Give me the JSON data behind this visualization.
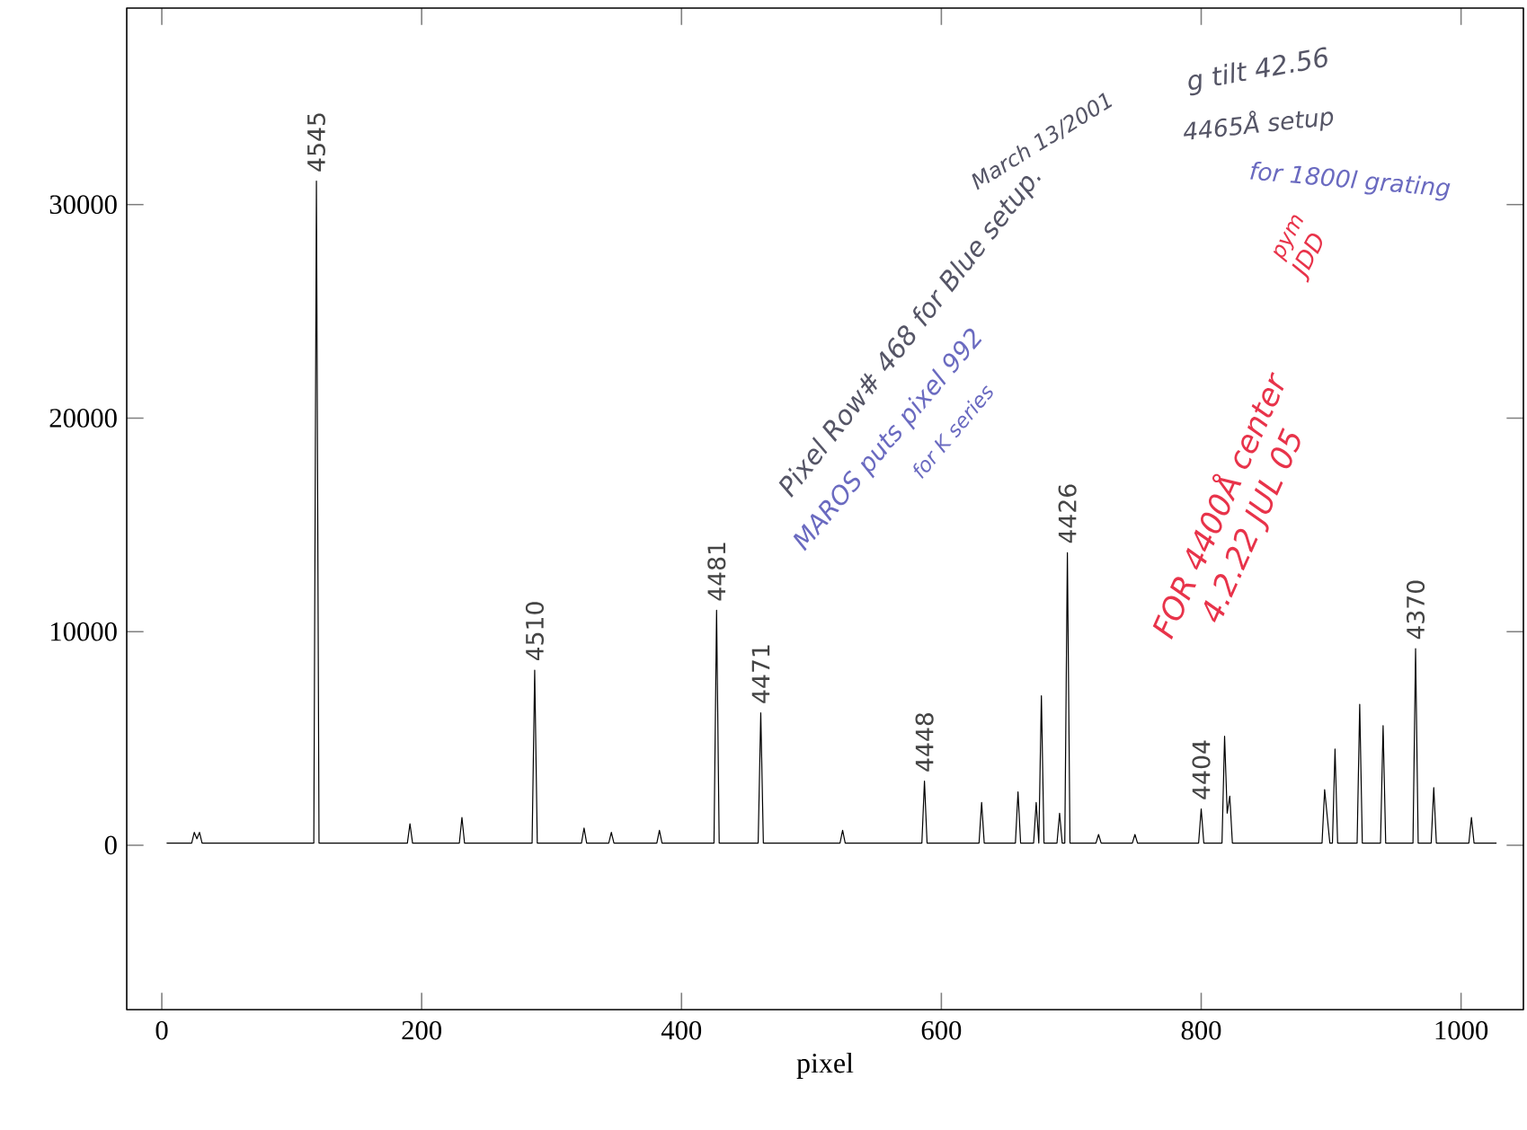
{
  "chart_data": {
    "type": "line",
    "xlabel": "pixel",
    "xlim": [
      -27,
      1048
    ],
    "ylim": [
      -7700,
      39200
    ],
    "xticks": [
      0,
      200,
      400,
      600,
      800,
      1000
    ],
    "yticks": [
      0,
      10000,
      20000,
      30000
    ],
    "grid": false,
    "marker": "none",
    "line_style": "solid",
    "series": [
      {
        "color": "#000000",
        "x": [
          4,
          23,
          25,
          27,
          29,
          31,
          117,
          119,
          121,
          189,
          191,
          193,
          229,
          231,
          233,
          285,
          287,
          289,
          323,
          325,
          327,
          344,
          346,
          348,
          381,
          383,
          385,
          425,
          427,
          429,
          459,
          461,
          463,
          522,
          524,
          526,
          585,
          587,
          589,
          629,
          631,
          633,
          657,
          659,
          661,
          671,
          673,
          675,
          677,
          679,
          689,
          691,
          693,
          695,
          697,
          699,
          719,
          721,
          723,
          747,
          749,
          751,
          798,
          800,
          802,
          816,
          818,
          820,
          822,
          824,
          893,
          895,
          899,
          901,
          903,
          905,
          920,
          922,
          924,
          938,
          940,
          942,
          963,
          965,
          967,
          977,
          979,
          981,
          1006,
          1008,
          1010,
          1027
        ],
        "values": [
          100,
          100,
          600,
          300,
          600,
          100,
          100,
          31100,
          100,
          100,
          1000,
          100,
          100,
          1300,
          100,
          100,
          8200,
          100,
          100,
          800,
          100,
          100,
          600,
          100,
          100,
          700,
          100,
          100,
          11000,
          100,
          100,
          6200,
          100,
          100,
          700,
          100,
          100,
          3000,
          100,
          100,
          2000,
          100,
          100,
          2500,
          100,
          100,
          2000,
          100,
          7000,
          100,
          100,
          1500,
          100,
          100,
          13700,
          100,
          100,
          500,
          100,
          100,
          500,
          100,
          100,
          1700,
          100,
          100,
          5100,
          1500,
          2300,
          100,
          100,
          2600,
          100,
          100,
          4500,
          100,
          100,
          6600,
          100,
          100,
          5600,
          100,
          100,
          9200,
          100,
          100,
          2700,
          100,
          100,
          1300,
          100,
          100
        ]
      }
    ],
    "annotations": [
      {
        "text": "4545",
        "x": 119,
        "y": 31100
      },
      {
        "text": "4510",
        "x": 287,
        "y": 8200
      },
      {
        "text": "4481",
        "x": 427,
        "y": 11000
      },
      {
        "text": "4471",
        "x": 461,
        "y": 6200
      },
      {
        "text": "4448",
        "x": 587,
        "y": 3000
      },
      {
        "text": "4426",
        "x": 697,
        "y": 13700
      },
      {
        "text": "4404",
        "x": 800,
        "y": 1700
      },
      {
        "text": "4370",
        "x": 965,
        "y": 9200
      },
      "Pixel Row# 468 for Blue setup.",
      "March 13/2001",
      "MAROS puts pixel 992",
      "for K series",
      "g tilt 42.56",
      "4465Å setup",
      "for 1800l grating",
      "FOR 4400Å center",
      "4.2.22 JUL 05",
      "pym",
      "JDD"
    ]
  }
}
